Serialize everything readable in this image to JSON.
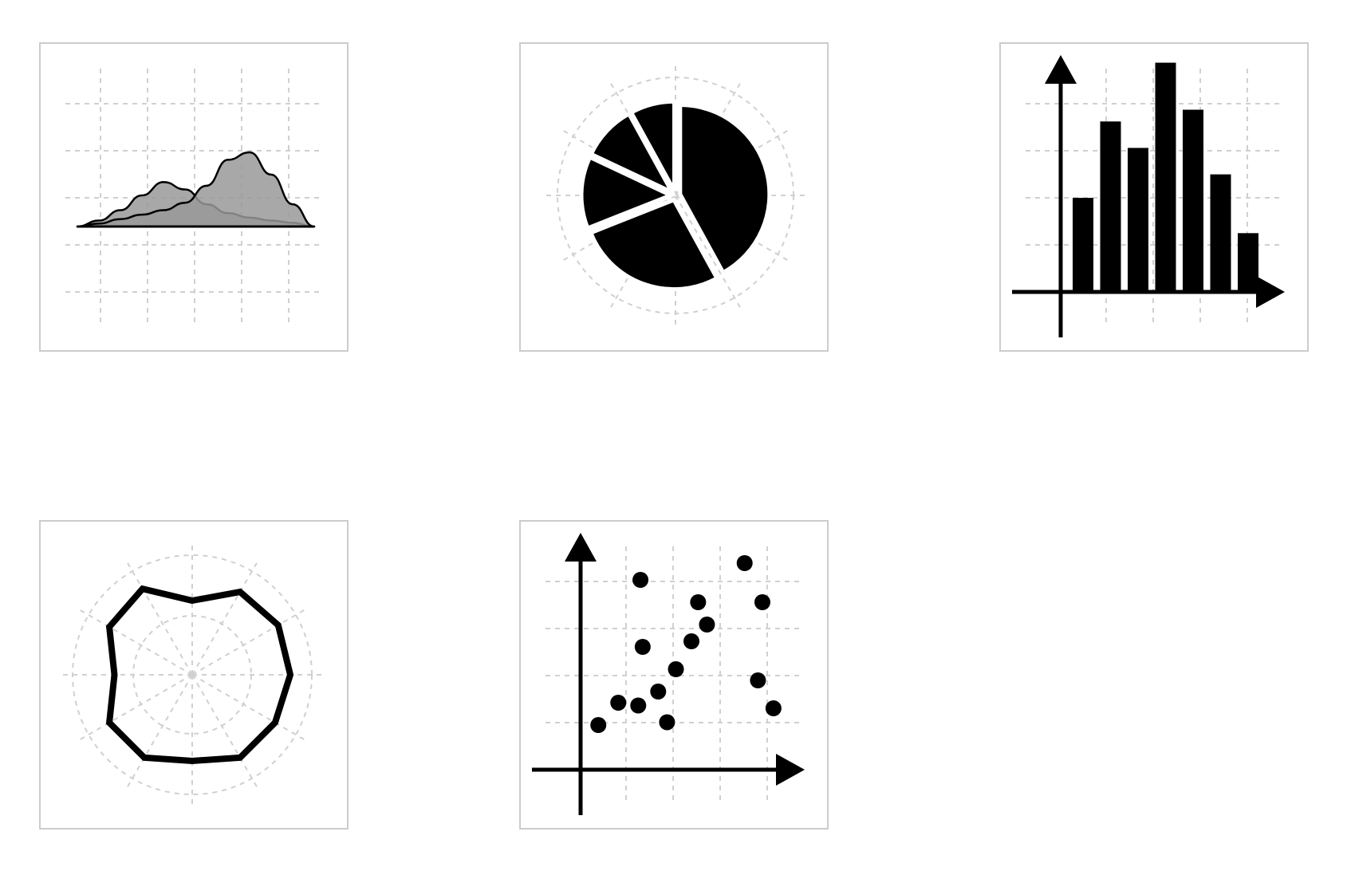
{
  "colors": {
    "border": "#cccccc",
    "grid": "#d0d0d0",
    "ink": "#000000",
    "background": "#ffffff",
    "density_light": "#999999",
    "density_dark": "#666666"
  },
  "tiles": [
    {
      "name": "density-plot-icon",
      "type": "area"
    },
    {
      "name": "pie-chart-icon",
      "type": "pie"
    },
    {
      "name": "bar-chart-icon",
      "type": "bar"
    },
    {
      "name": "radar-chart-icon",
      "type": "radar"
    },
    {
      "name": "scatter-plot-icon",
      "type": "scatter"
    }
  ],
  "chart_data": [
    {
      "type": "area",
      "series": [
        {
          "values": [
            0,
            0.08,
            0.22,
            0.42,
            0.6,
            0.5,
            0.3,
            0.18,
            0.12,
            0.08,
            0.05,
            0
          ]
        },
        {
          "values": [
            0,
            0.04,
            0.1,
            0.16,
            0.22,
            0.32,
            0.55,
            0.9,
            1.0,
            0.7,
            0.3,
            0
          ]
        }
      ],
      "ylim": [
        0,
        1
      ],
      "grid": true
    },
    {
      "type": "pie",
      "values": [
        42,
        27,
        13,
        10,
        8
      ],
      "exploded": true,
      "grid": true
    },
    {
      "type": "bar",
      "values": [
        3.2,
        5.8,
        4.9,
        7.8,
        6.2,
        4.0,
        2.0
      ],
      "ylim": [
        0,
        8.5
      ],
      "grid": true
    },
    {
      "type": "radar",
      "values": [
        0.62,
        0.8,
        0.83,
        0.82,
        0.8,
        0.8,
        0.72,
        0.8,
        0.8,
        0.65,
        0.8,
        0.83
      ],
      "grid": true
    },
    {
      "type": "scatter",
      "points": [
        [
          0.4,
          0.8
        ],
        [
          0.85,
          1.2
        ],
        [
          1.35,
          3.4
        ],
        [
          1.3,
          1.15
        ],
        [
          1.4,
          2.2
        ],
        [
          1.75,
          1.4
        ],
        [
          1.95,
          0.85
        ],
        [
          2.15,
          1.8
        ],
        [
          2.5,
          2.3
        ],
        [
          2.65,
          3.0
        ],
        [
          2.85,
          2.6
        ],
        [
          3.7,
          3.7
        ],
        [
          4.1,
          3.0
        ],
        [
          4.0,
          1.6
        ],
        [
          4.35,
          1.1
        ]
      ],
      "xlim": [
        0,
        5
      ],
      "ylim": [
        0,
        4
      ],
      "grid": true
    }
  ]
}
